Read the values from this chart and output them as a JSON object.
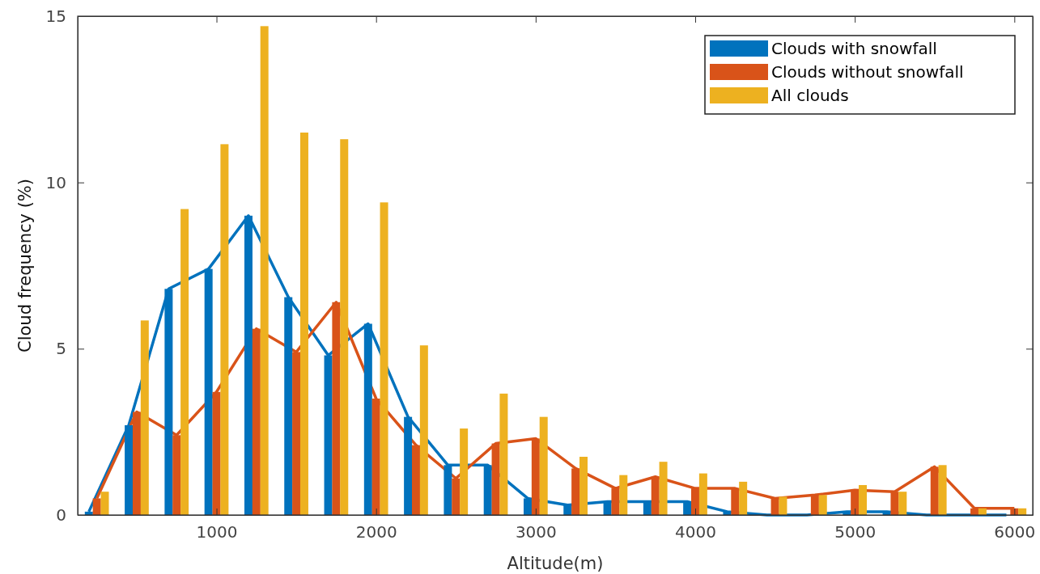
{
  "chart_data": {
    "type": "bar",
    "xlabel": "Altitude(m)",
    "ylabel": "Cloud frequency (%)",
    "xlim": [
      130,
      6115
    ],
    "ylim": [
      0,
      15
    ],
    "xticks": [
      1000,
      2000,
      3000,
      4000,
      5000,
      6000
    ],
    "yticks": [
      0,
      5,
      10,
      15
    ],
    "grid": false,
    "legend": "top right",
    "series": [
      {
        "name": "Clouds with snowfall",
        "color": "#0072bd",
        "x": [
          200,
          450,
          700,
          950,
          1200,
          1450,
          1700,
          1950,
          2200,
          2450,
          2700,
          2950,
          3200,
          3450,
          3700,
          3950,
          4200,
          4450,
          4700,
          4950,
          5200,
          5450,
          5700,
          5950
        ],
        "values": [
          0.1,
          2.7,
          6.8,
          7.4,
          9.0,
          6.55,
          4.8,
          5.75,
          2.95,
          1.5,
          1.5,
          0.5,
          0.3,
          0.4,
          0.4,
          0.4,
          0.1,
          0,
          0,
          0.1,
          0.1,
          0,
          0,
          0
        ]
      },
      {
        "name": "Clouds without snowfall",
        "color": "#d95319",
        "x": [
          250,
          500,
          750,
          1000,
          1250,
          1500,
          1750,
          2000,
          2250,
          2500,
          2750,
          3000,
          3250,
          3500,
          3750,
          4000,
          4250,
          4500,
          4750,
          5000,
          5250,
          5500,
          5750,
          6000
        ],
        "values": [
          0.5,
          3.1,
          2.4,
          3.7,
          5.6,
          4.9,
          6.4,
          3.5,
          2.1,
          1.1,
          2.15,
          2.3,
          1.4,
          0.8,
          1.15,
          0.8,
          0.8,
          0.5,
          0.6,
          0.75,
          0.7,
          1.45,
          0.2,
          0.2
        ]
      },
      {
        "name": "All clouds",
        "color": "#edb120",
        "x": [
          300,
          550,
          800,
          1050,
          1300,
          1550,
          1800,
          2050,
          2300,
          2550,
          2800,
          3050,
          3300,
          3550,
          3800,
          4050,
          4300,
          4550,
          4800,
          5050,
          5300,
          5550,
          5800,
          6050
        ],
        "values": [
          0.7,
          5.85,
          9.2,
          11.15,
          14.7,
          11.5,
          11.3,
          9.4,
          5.1,
          2.6,
          3.65,
          2.95,
          1.75,
          1.2,
          1.6,
          1.25,
          1.0,
          0.55,
          0.6,
          0.9,
          0.7,
          1.5,
          0.2,
          0.2
        ]
      },
      {
        "type": "line",
        "color": "#0072bd",
        "x": [
          200,
          450,
          700,
          950,
          1200,
          1450,
          1700,
          1950,
          2200,
          2450,
          2700,
          2950,
          3200,
          3450,
          3700,
          3950,
          4200,
          4450,
          4700,
          4950,
          5200,
          5450,
          5700,
          5950
        ],
        "values": [
          0.1,
          2.7,
          6.8,
          7.4,
          9.0,
          6.55,
          4.8,
          5.75,
          2.95,
          1.5,
          1.5,
          0.5,
          0.3,
          0.4,
          0.4,
          0.4,
          0.1,
          0,
          0,
          0.1,
          0.1,
          0,
          0,
          0
        ]
      },
      {
        "type": "line",
        "color": "#d95319",
        "x": [
          250,
          500,
          750,
          1000,
          1250,
          1500,
          1750,
          2000,
          2250,
          2500,
          2750,
          3000,
          3250,
          3500,
          3750,
          4000,
          4250,
          4500,
          4750,
          5000,
          5250,
          5500,
          5750,
          6000
        ],
        "values": [
          0.5,
          3.1,
          2.4,
          3.7,
          5.6,
          4.9,
          6.4,
          3.5,
          2.1,
          1.1,
          2.15,
          2.3,
          1.4,
          0.8,
          1.15,
          0.8,
          0.8,
          0.5,
          0.6,
          0.75,
          0.7,
          1.45,
          0.2,
          0.2
        ]
      }
    ]
  }
}
